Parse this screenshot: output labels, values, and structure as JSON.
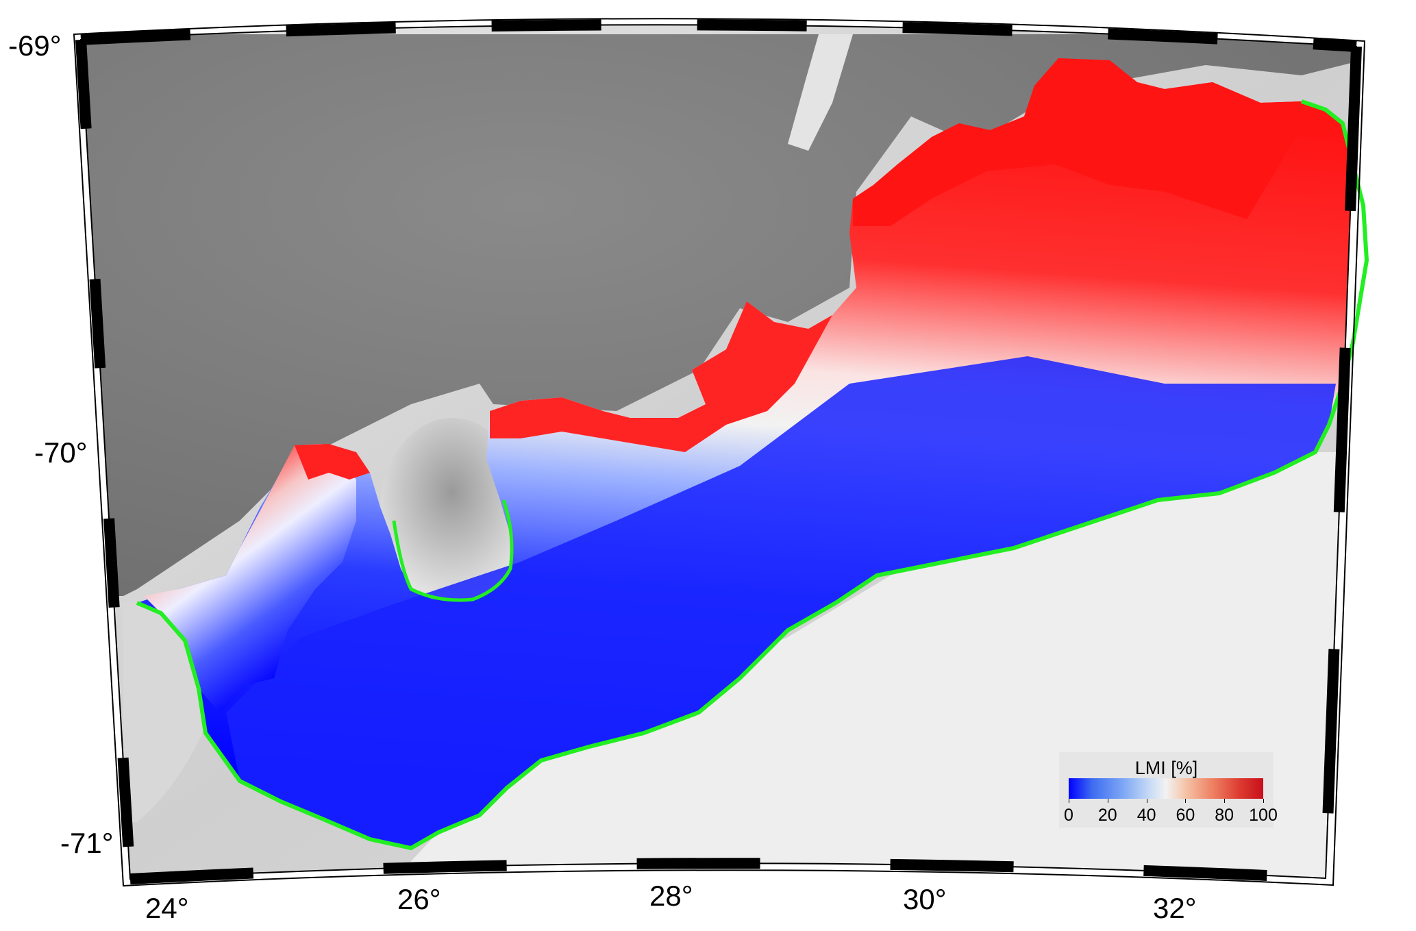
{
  "map": {
    "lat_labels": [
      {
        "text": "-69°",
        "lat": -69
      },
      {
        "text": "-70°",
        "lat": -70
      },
      {
        "text": "-71°",
        "lat": -71
      }
    ],
    "lon_labels": [
      {
        "text": "24°",
        "lon": 24
      },
      {
        "text": "26°",
        "lon": 26
      },
      {
        "text": "28°",
        "lon": 28
      },
      {
        "text": "30°",
        "lon": 30
      },
      {
        "text": "32°",
        "lon": 32
      }
    ],
    "colors": {
      "grounding_line": "#22ee22",
      "lmi_low": "#0000ff",
      "lmi_mid": "#f2f2f2",
      "lmi_high": "#ff1414",
      "frame_dark": "#000000",
      "frame_light": "#ffffff"
    }
  },
  "legend": {
    "title": "LMI [%]",
    "ticks": [
      "0",
      "20",
      "40",
      "60",
      "80",
      "100"
    ],
    "colormap": "blue-white-red"
  }
}
